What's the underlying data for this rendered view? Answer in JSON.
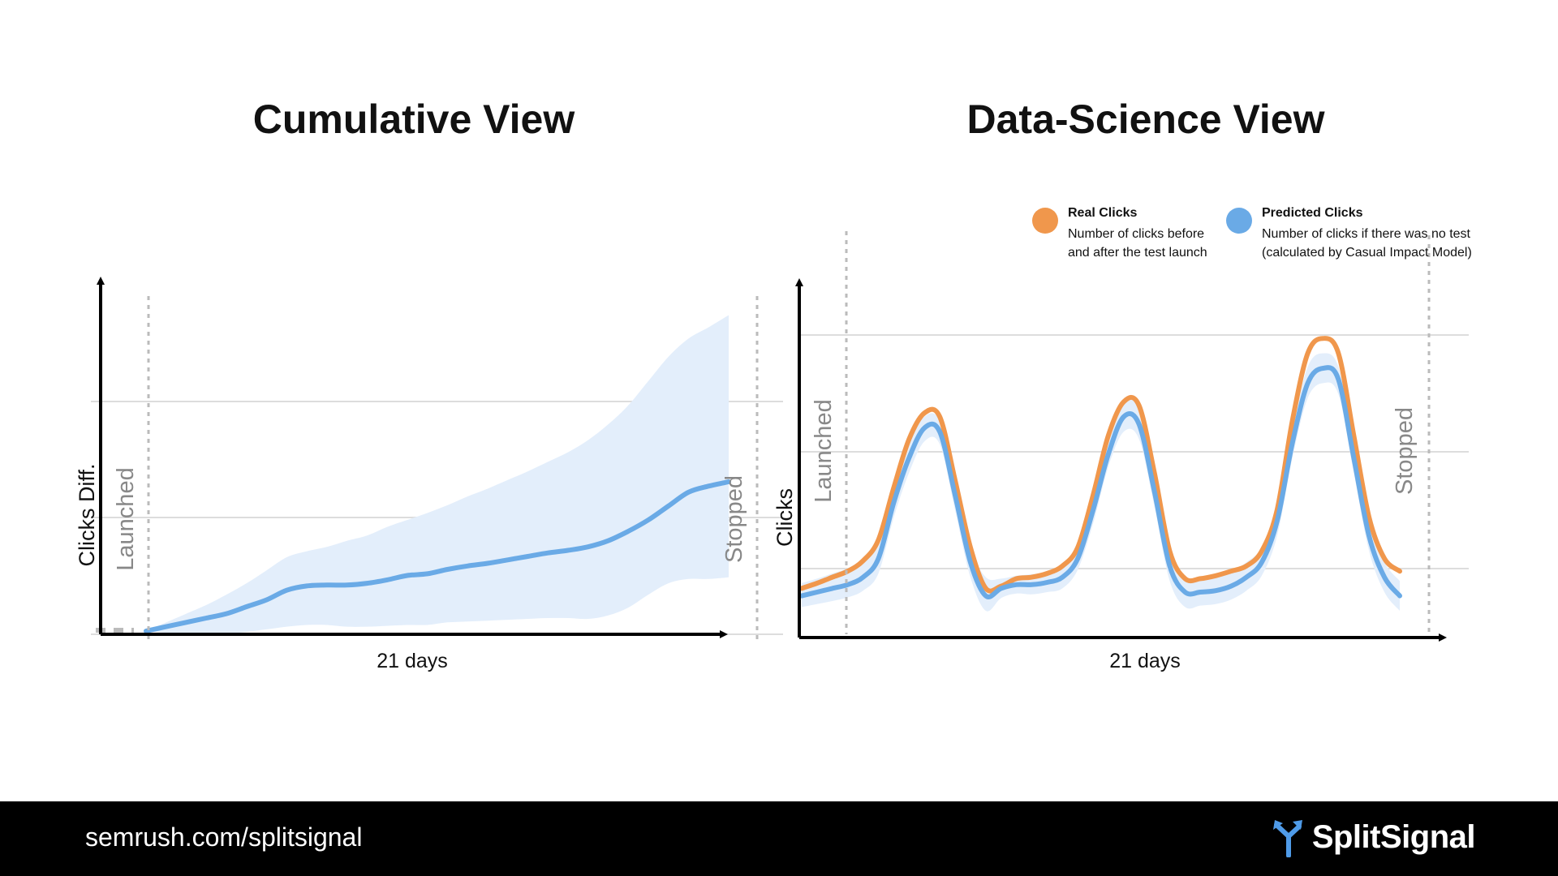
{
  "footer": {
    "url": "semrush.com/splitsignal",
    "brand": "SplitSignal"
  },
  "colors": {
    "orange": "#f0974c",
    "blue": "#6aaae6",
    "band": "#e3eefb",
    "grid": "#dddddd",
    "marker": "#bbbbbb"
  },
  "icons": {
    "brand": "splitsignal-logo-icon"
  },
  "chart_data": [
    {
      "type": "area",
      "title": "Cumulative View",
      "xlabel": "21 days",
      "ylabel": "Clicks Diff.",
      "grid": true,
      "markers": {
        "launched": "Launched",
        "stopped": "Stopped"
      },
      "series": [
        {
          "values": [
            0.0,
            0.05,
            0.1,
            0.15,
            0.2,
            0.28,
            0.36,
            0.47,
            0.52,
            0.53,
            0.53,
            0.55,
            0.59,
            0.64,
            0.66,
            0.71,
            0.75,
            0.78,
            0.82,
            0.86,
            0.9,
            0.93,
            0.97,
            1.04,
            1.15,
            1.28,
            1.44,
            1.6,
            1.67,
            1.72
          ]
        }
      ],
      "band_upper": [
        0.0,
        0.1,
        0.2,
        0.3,
        0.42,
        0.55,
        0.7,
        0.85,
        0.92,
        0.97,
        1.04,
        1.1,
        1.2,
        1.28,
        1.36,
        1.45,
        1.55,
        1.64,
        1.74,
        1.84,
        1.95,
        2.06,
        2.2,
        2.38,
        2.6,
        2.88,
        3.16,
        3.37,
        3.5,
        3.64
      ],
      "band_lower": [
        0.0,
        -0.02,
        -0.03,
        -0.03,
        -0.03,
        -0.01,
        0.02,
        0.05,
        0.07,
        0.07,
        0.05,
        0.05,
        0.06,
        0.07,
        0.07,
        0.1,
        0.11,
        0.12,
        0.13,
        0.14,
        0.15,
        0.15,
        0.14,
        0.18,
        0.27,
        0.42,
        0.55,
        0.6,
        0.6,
        0.62
      ]
    },
    {
      "type": "line",
      "title": "Data-Science View",
      "xlabel": "21 days",
      "ylabel": "Clicks",
      "grid": true,
      "legend": "top-right",
      "markers": {
        "launched": "Launched",
        "stopped": "Stopped"
      },
      "series": [
        {
          "name": "Real Clicks",
          "description": [
            "Number of clicks before",
            "and after the test launch"
          ],
          "color": "#f0974c",
          "values": [
            1.05,
            1.12,
            1.2,
            1.28,
            1.42,
            1.7,
            2.4,
            3.05,
            3.4,
            3.35,
            2.5,
            1.6,
            1.05,
            1.08,
            1.18,
            1.2,
            1.25,
            1.35,
            1.6,
            2.3,
            3.1,
            3.55,
            3.5,
            2.6,
            1.55,
            1.18,
            1.18,
            1.22,
            1.28,
            1.35,
            1.55,
            2.1,
            3.3,
            4.2,
            4.4,
            4.2,
            3.1,
            2.0,
            1.45,
            1.28
          ]
        },
        {
          "name": "Predicted Clicks",
          "description": [
            "Number of clicks if there was no test",
            "(calculated by Casual Impact Model)"
          ],
          "color": "#6aaae6",
          "values": [
            0.95,
            1.0,
            1.05,
            1.1,
            1.2,
            1.45,
            2.2,
            2.8,
            3.2,
            3.15,
            2.3,
            1.4,
            0.95,
            1.05,
            1.1,
            1.1,
            1.13,
            1.2,
            1.45,
            2.1,
            2.85,
            3.35,
            3.25,
            2.35,
            1.35,
            1.0,
            1.0,
            1.02,
            1.08,
            1.2,
            1.4,
            1.95,
            3.0,
            3.8,
            4.0,
            3.85,
            2.8,
            1.75,
            1.2,
            0.95
          ]
        }
      ],
      "band_upper": [
        1.12,
        1.18,
        1.25,
        1.32,
        1.45,
        1.68,
        2.38,
        2.98,
        3.35,
        3.3,
        2.5,
        1.6,
        1.2,
        1.18,
        1.22,
        1.24,
        1.27,
        1.34,
        1.6,
        2.28,
        3.02,
        3.55,
        3.45,
        2.55,
        1.55,
        1.2,
        1.18,
        1.22,
        1.28,
        1.4,
        1.6,
        2.15,
        3.2,
        4.02,
        4.2,
        4.02,
        3.0,
        1.95,
        1.4,
        1.15
      ],
      "band_lower": [
        0.8,
        0.84,
        0.88,
        0.93,
        1.02,
        1.25,
        2.0,
        2.6,
        3.02,
        2.98,
        2.1,
        1.2,
        0.75,
        0.92,
        0.98,
        0.97,
        1.0,
        1.05,
        1.3,
        1.92,
        2.68,
        3.15,
        3.05,
        2.15,
        1.15,
        0.8,
        0.82,
        0.84,
        0.9,
        1.02,
        1.22,
        1.75,
        2.8,
        3.6,
        3.8,
        3.65,
        2.6,
        1.55,
        1.0,
        0.75
      ]
    }
  ]
}
